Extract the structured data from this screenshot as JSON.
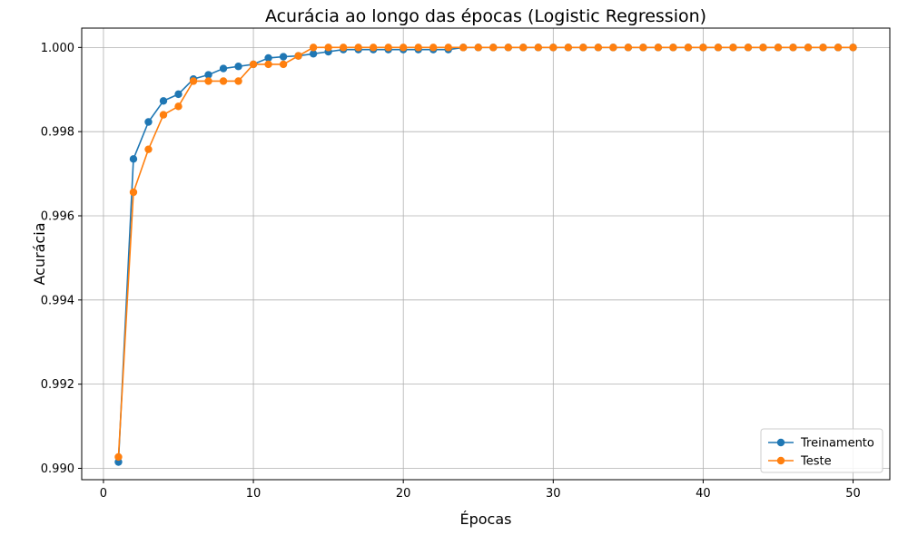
{
  "chart_data": {
    "type": "line",
    "title": "Acurácia ao longo das épocas (Logistic Regression)",
    "xlabel": "Épocas",
    "ylabel": "Acurácia",
    "xlim": [
      -1.45,
      52.45
    ],
    "ylim": [
      0.98973,
      1.00046
    ],
    "xticks": [
      0,
      10,
      20,
      30,
      40,
      50
    ],
    "xtick_labels": [
      "0",
      "10",
      "20",
      "30",
      "40",
      "50"
    ],
    "yticks": [
      0.99,
      0.992,
      0.994,
      0.996,
      0.998,
      1.0
    ],
    "ytick_labels": [
      "0.990",
      "0.992",
      "0.994",
      "0.996",
      "0.998",
      "1.000"
    ],
    "grid": true,
    "legend_position": "lower-right",
    "x": [
      1,
      2,
      3,
      4,
      5,
      6,
      7,
      8,
      9,
      10,
      11,
      12,
      13,
      14,
      15,
      16,
      17,
      18,
      19,
      20,
      21,
      22,
      23,
      24,
      25,
      26,
      27,
      28,
      29,
      30,
      31,
      32,
      33,
      34,
      35,
      36,
      37,
      38,
      39,
      40,
      41,
      42,
      43,
      44,
      45,
      46,
      47,
      48,
      49,
      50
    ],
    "series": [
      {
        "name": "Treinamento",
        "color": "#1f77b4",
        "values": [
          0.99015,
          0.99735,
          0.99823,
          0.99873,
          0.99889,
          0.99925,
          0.99935,
          0.9995,
          0.99955,
          0.9996,
          0.99975,
          0.99978,
          0.9998,
          0.99985,
          0.9999,
          0.99995,
          0.99995,
          0.99995,
          0.99995,
          0.99995,
          0.99995,
          0.99995,
          0.99995,
          1.0,
          1.0,
          1.0,
          1.0,
          1.0,
          1.0,
          1.0,
          1.0,
          1.0,
          1.0,
          1.0,
          1.0,
          1.0,
          1.0,
          1.0,
          1.0,
          1.0,
          1.0,
          1.0,
          1.0,
          1.0,
          1.0,
          1.0,
          1.0,
          1.0,
          1.0,
          1.0
        ]
      },
      {
        "name": "Teste",
        "color": "#ff7f0e",
        "values": [
          0.99027,
          0.99656,
          0.99758,
          0.9984,
          0.9986,
          0.9992,
          0.9992,
          0.9992,
          0.9992,
          0.9996,
          0.9996,
          0.9996,
          0.9998,
          1.0,
          1.0,
          1.0,
          1.0,
          1.0,
          1.0,
          1.0,
          1.0,
          1.0,
          1.0,
          1.0,
          1.0,
          1.0,
          1.0,
          1.0,
          1.0,
          1.0,
          1.0,
          1.0,
          1.0,
          1.0,
          1.0,
          1.0,
          1.0,
          1.0,
          1.0,
          1.0,
          1.0,
          1.0,
          1.0,
          1.0,
          1.0,
          1.0,
          1.0,
          1.0,
          1.0,
          1.0
        ]
      }
    ]
  }
}
